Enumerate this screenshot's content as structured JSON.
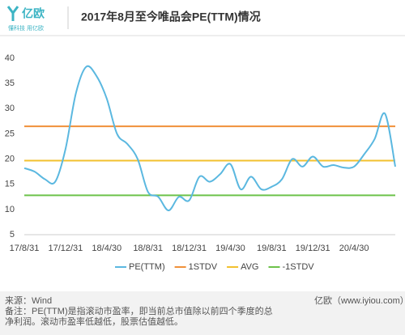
{
  "header": {
    "logo": "亿欧",
    "slogan": "懂科技 用亿欧"
  },
  "chart_data": {
    "type": "line",
    "title": "2017年8月至今唯品会PE(TTM)情况",
    "categories": [
      "17/8/31",
      null,
      null,
      null,
      "17/12/31",
      null,
      null,
      null,
      "18/4/30",
      null,
      null,
      null,
      "18/8/31",
      null,
      null,
      null,
      "18/12/31",
      null,
      null,
      null,
      "19/4/30",
      null,
      null,
      null,
      "19/8/31",
      null,
      null,
      null,
      "19/12/31",
      null,
      null,
      null,
      "20/4/30",
      null,
      null,
      null,
      null
    ],
    "series": [
      {
        "name": "PE(TTM)",
        "color": "#5bb8e0",
        "values": [
          18.2,
          17.5,
          16,
          15.5,
          22,
          33,
          38.3,
          36.5,
          32,
          25,
          23,
          20,
          13.5,
          12.5,
          9.8,
          12.5,
          11.8,
          16.5,
          15.5,
          17,
          19,
          14,
          16.5,
          14,
          14.5,
          16,
          20,
          18.5,
          20.5,
          18.5,
          18.8,
          18.3,
          18.5,
          21,
          24,
          29,
          18.5
        ]
      }
    ],
    "reference_lines": [
      {
        "name": "1STDV",
        "color": "#f0913a",
        "value": 26.5
      },
      {
        "name": "AVG",
        "color": "#f2c12e",
        "value": 19.7
      },
      {
        "name": "-1STDV",
        "color": "#6cc24a",
        "value": 12.8
      }
    ],
    "ylim": [
      5,
      40
    ],
    "yticks": [
      5,
      10,
      15,
      20,
      25,
      30,
      35,
      40
    ],
    "grid": false
  },
  "footer": {
    "source": "来源：Wind",
    "note": "备注：PE(TTM)是指滚动市盈率，即当前总市值除以前四个季度的总净利润。滚动市盈率低越低，股票估值越低。",
    "brand": "亿欧（www.iyiou.com）"
  }
}
